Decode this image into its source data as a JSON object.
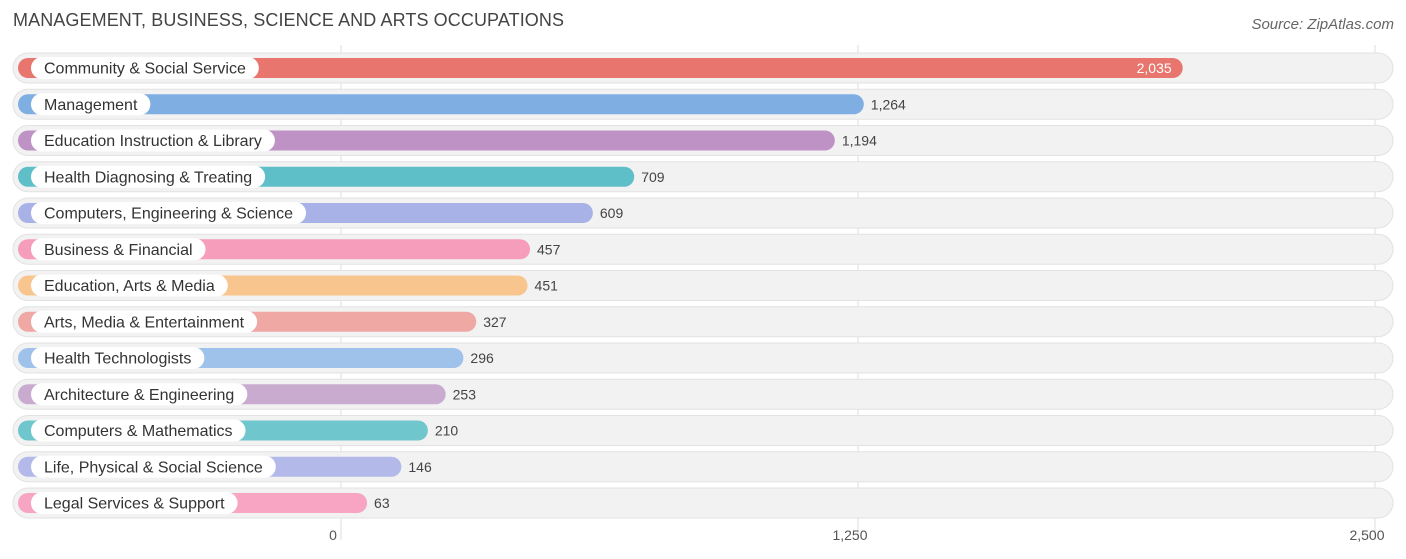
{
  "title": "MANAGEMENT, BUSINESS, SCIENCE AND ARTS OCCUPATIONS",
  "source": "Source: ZipAtlas.com",
  "chart_data": {
    "type": "bar",
    "orientation": "horizontal",
    "title": "MANAGEMENT, BUSINESS, SCIENCE AND ARTS OCCUPATIONS",
    "categories": [
      "Community & Social Service",
      "Management",
      "Education Instruction & Library",
      "Health Diagnosing & Treating",
      "Computers, Engineering & Science",
      "Business & Financial",
      "Education, Arts & Media",
      "Arts, Media & Entertainment",
      "Health Technologists",
      "Architecture & Engineering",
      "Computers & Mathematics",
      "Life, Physical & Social Science",
      "Legal Services & Support"
    ],
    "values": [
      2035,
      1264,
      1194,
      709,
      609,
      457,
      451,
      327,
      296,
      253,
      210,
      146,
      63
    ],
    "value_labels": [
      "2,035",
      "1,264",
      "1,194",
      "709",
      "609",
      "457",
      "451",
      "327",
      "296",
      "253",
      "210",
      "146",
      "63"
    ],
    "colors": [
      "#e8766f",
      "#7eaee2",
      "#bf92c6",
      "#5fbfc9",
      "#a8b2e6",
      "#f59dba",
      "#f9c58f",
      "#f0a8a4",
      "#9fc2ea",
      "#c9abd0",
      "#6fc6cc",
      "#b3baea",
      "#f7a5c2"
    ],
    "xlim": [
      0,
      2500
    ],
    "ticks": [
      0,
      1250,
      2500
    ],
    "tick_labels": [
      "0",
      "1,250",
      "2,500"
    ],
    "grid": true,
    "xlabel": "",
    "ylabel": ""
  }
}
